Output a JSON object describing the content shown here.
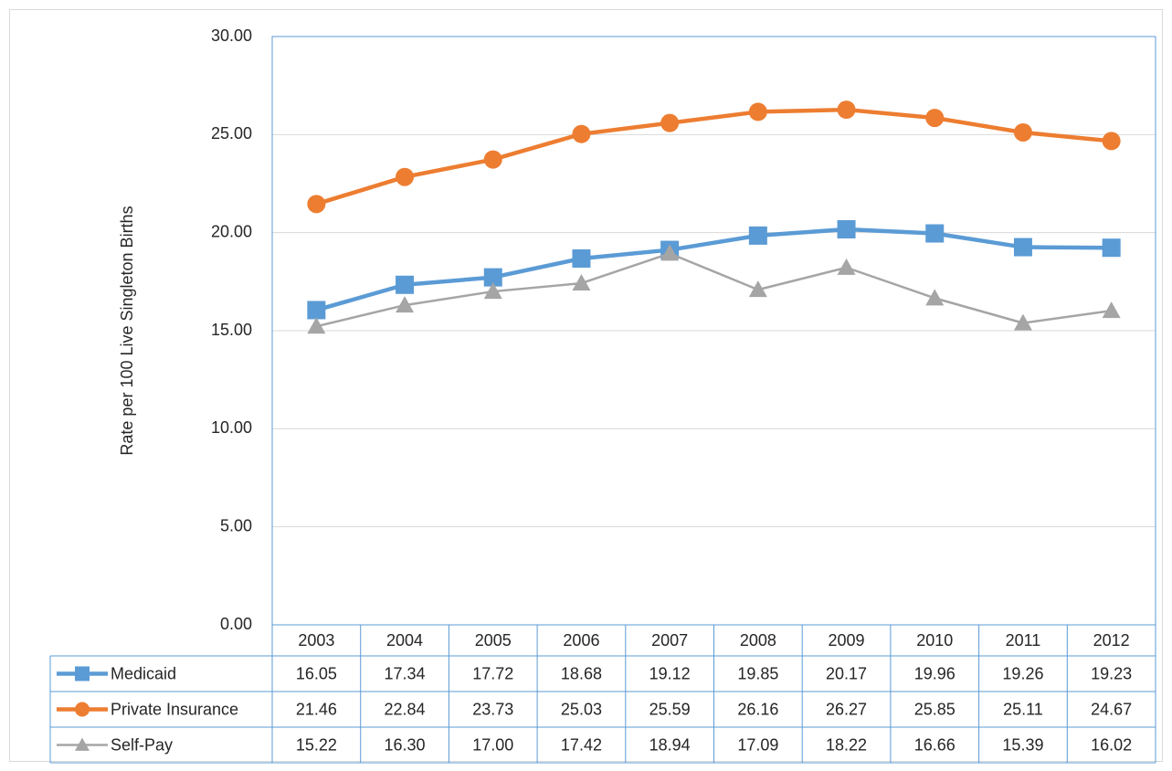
{
  "chart_data": {
    "type": "line",
    "y_label": "Rate per 100 Live Singleton Births",
    "categories": [
      "2003",
      "2004",
      "2005",
      "2006",
      "2007",
      "2008",
      "2009",
      "2010",
      "2011",
      "2012"
    ],
    "series": [
      {
        "name": "Medicaid",
        "color": "#5b9bd5",
        "marker": "square",
        "values": [
          16.05,
          17.34,
          17.72,
          18.68,
          19.12,
          19.85,
          20.17,
          19.96,
          19.26,
          19.23
        ],
        "value_labels": [
          "16.05",
          "17.34",
          "17.72",
          "18.68",
          "19.12",
          "19.85",
          "20.17",
          "19.96",
          "19.26",
          "19.23"
        ]
      },
      {
        "name": "Private Insurance",
        "color": "#ed7d31",
        "marker": "circle",
        "values": [
          21.46,
          22.84,
          23.73,
          25.03,
          25.59,
          26.16,
          26.27,
          25.85,
          25.11,
          24.67
        ],
        "value_labels": [
          "21.46",
          "22.84",
          "23.73",
          "25.03",
          "25.59",
          "26.16",
          "26.27",
          "25.85",
          "25.11",
          "24.67"
        ]
      },
      {
        "name": "Self-Pay",
        "color": "#a5a5a5",
        "marker": "triangle",
        "values": [
          15.22,
          16.3,
          17.0,
          17.42,
          18.94,
          17.09,
          18.22,
          16.66,
          15.39,
          16.02
        ],
        "value_labels": [
          "15.22",
          "16.30",
          "17.00",
          "17.42",
          "18.94",
          "17.09",
          "18.22",
          "16.66",
          "15.39",
          "16.02"
        ]
      }
    ],
    "ylim": [
      0,
      30
    ],
    "yticks": [
      {
        "value": 0,
        "label": "0.00"
      },
      {
        "value": 5,
        "label": "5.00"
      },
      {
        "value": 10,
        "label": "10.00"
      },
      {
        "value": 15,
        "label": "15.00"
      },
      {
        "value": 20,
        "label": "20.00"
      },
      {
        "value": 25,
        "label": "25.00"
      },
      {
        "value": 30,
        "label": "30.00"
      }
    ],
    "grid": true
  }
}
